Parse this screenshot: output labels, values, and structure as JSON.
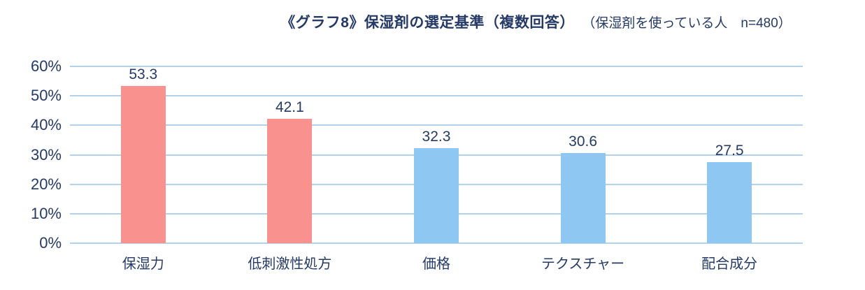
{
  "title": {
    "main": "《グラフ8》保湿剤の選定基準（複数回答）",
    "sub": "（保湿剤を使っている人　n=480）"
  },
  "chart_data": {
    "type": "bar",
    "title": "《グラフ8》保湿剤の選定基準（複数回答）",
    "subtitle": "（保湿剤を使っている人 n=480）",
    "categories": [
      "保湿力",
      "低刺激性処方",
      "価格",
      "テクスチャー",
      "配合成分"
    ],
    "values": [
      53.3,
      42.1,
      32.3,
      30.6,
      27.5
    ],
    "bar_colors": [
      "#f9918e",
      "#f9918e",
      "#8ec7f1",
      "#8ec7f1",
      "#8ec7f1"
    ],
    "ylim": [
      0,
      60
    ],
    "ytick_labels": [
      "0%",
      "10%",
      "20%",
      "30%",
      "40%",
      "50%",
      "60%"
    ],
    "grid": true,
    "legend": false
  },
  "colors": {
    "text": "#253a67",
    "grid": "#b3d2ec"
  }
}
